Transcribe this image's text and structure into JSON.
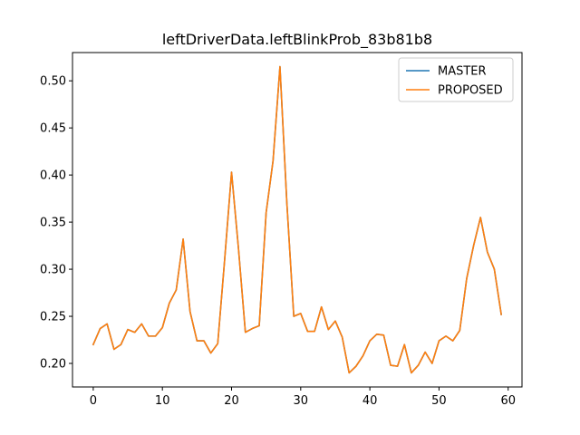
{
  "chart_data": {
    "type": "line",
    "title": "leftDriverData.leftBlinkProb_83b81b8",
    "xlabel": "",
    "ylabel": "",
    "xlim": [
      -3,
      62
    ],
    "ylim": [
      0.175,
      0.53
    ],
    "xticks": [
      0,
      10,
      20,
      30,
      40,
      50,
      60
    ],
    "yticks": [
      0.2,
      0.25,
      0.3,
      0.35,
      0.4,
      0.45,
      0.5
    ],
    "ytick_labels": [
      "0.20",
      "0.25",
      "0.30",
      "0.35",
      "0.40",
      "0.45",
      "0.50"
    ],
    "grid": false,
    "legend_position": "top-right",
    "x": [
      0,
      1,
      2,
      3,
      4,
      5,
      6,
      7,
      8,
      9,
      10,
      11,
      12,
      13,
      14,
      15,
      16,
      17,
      18,
      19,
      20,
      21,
      22,
      23,
      24,
      25,
      26,
      27,
      28,
      29,
      30,
      31,
      32,
      33,
      34,
      35,
      36,
      37,
      38,
      39,
      40,
      41,
      42,
      43,
      44,
      45,
      46,
      47,
      48,
      49,
      50,
      51,
      52,
      53,
      54,
      55,
      56,
      57,
      58,
      59
    ],
    "series": [
      {
        "name": "MASTER",
        "color": "#1f77b4",
        "values": [
          0.22,
          0.237,
          0.242,
          0.215,
          0.22,
          0.236,
          0.233,
          0.242,
          0.229,
          0.229,
          0.238,
          0.264,
          0.278,
          0.332,
          0.255,
          0.224,
          0.224,
          0.211,
          0.221,
          0.31,
          0.403,
          0.322,
          0.233,
          0.237,
          0.24,
          0.36,
          0.415,
          0.515,
          0.37,
          0.25,
          0.253,
          0.234,
          0.234,
          0.26,
          0.236,
          0.245,
          0.228,
          0.19,
          0.197,
          0.208,
          0.224,
          0.231,
          0.23,
          0.198,
          0.197,
          0.22,
          0.19,
          0.198,
          0.212,
          0.2,
          0.224,
          0.229,
          0.224,
          0.235,
          0.29,
          0.325,
          0.355,
          0.318,
          0.3,
          0.252
        ]
      },
      {
        "name": "PROPOSED",
        "color": "#ff7f0e",
        "values": [
          0.22,
          0.237,
          0.242,
          0.215,
          0.22,
          0.236,
          0.233,
          0.242,
          0.229,
          0.229,
          0.238,
          0.264,
          0.278,
          0.332,
          0.255,
          0.224,
          0.224,
          0.211,
          0.221,
          0.31,
          0.403,
          0.322,
          0.233,
          0.237,
          0.24,
          0.36,
          0.415,
          0.515,
          0.37,
          0.25,
          0.253,
          0.234,
          0.234,
          0.26,
          0.236,
          0.245,
          0.228,
          0.19,
          0.197,
          0.208,
          0.224,
          0.231,
          0.23,
          0.198,
          0.197,
          0.22,
          0.19,
          0.198,
          0.212,
          0.2,
          0.224,
          0.229,
          0.224,
          0.235,
          0.29,
          0.325,
          0.355,
          0.318,
          0.3,
          0.252
        ]
      }
    ]
  }
}
